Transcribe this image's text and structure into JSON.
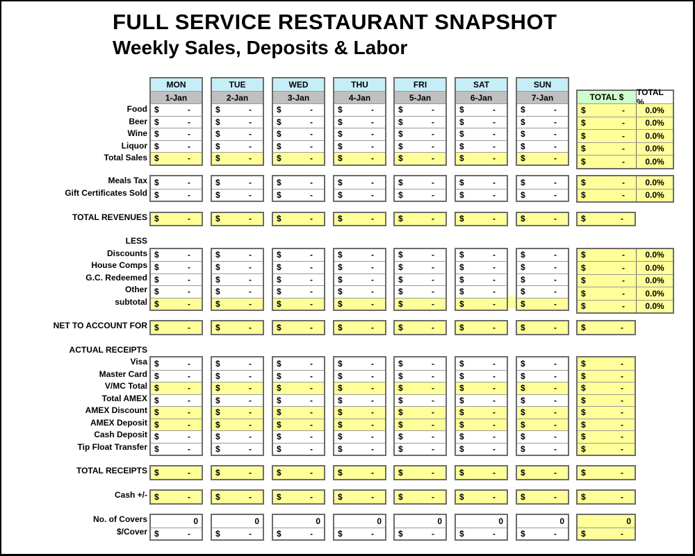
{
  "header": {
    "title": "FULL SERVICE RESTAURANT SNAPSHOT",
    "subtitle": "Weekly Sales, Deposits & Labor"
  },
  "currency_symbol": "$",
  "columns": {
    "days": [
      {
        "label": "MON",
        "date": "1-Jan"
      },
      {
        "label": "TUE",
        "date": "2-Jan"
      },
      {
        "label": "WED",
        "date": "3-Jan"
      },
      {
        "label": "THU",
        "date": "4-Jan"
      },
      {
        "label": "FRI",
        "date": "5-Jan"
      },
      {
        "label": "SAT",
        "date": "6-Jan"
      },
      {
        "label": "SUN",
        "date": "7-Jan"
      }
    ],
    "totals": {
      "dollar": "TOTAL $",
      "percent": "TOTAL %"
    }
  },
  "colors": {
    "day_header": "#C6EEF7",
    "date_header": "#C0C0C0",
    "highlight": "#FFFF99",
    "total_dollar_header": "#CCFFCC"
  },
  "sections": [
    {
      "id": "sales",
      "percent": true,
      "rows": [
        {
          "label": "Food",
          "format": "money",
          "highlight": false,
          "days": [
            "-",
            "-",
            "-",
            "-",
            "-",
            "-",
            "-"
          ],
          "total": "-",
          "pct": "0.0%"
        },
        {
          "label": "Beer",
          "format": "money",
          "highlight": false,
          "days": [
            "-",
            "-",
            "-",
            "-",
            "-",
            "-",
            "-"
          ],
          "total": "-",
          "pct": "0.0%"
        },
        {
          "label": "Wine",
          "format": "money",
          "highlight": false,
          "days": [
            "-",
            "-",
            "-",
            "-",
            "-",
            "-",
            "-"
          ],
          "total": "-",
          "pct": "0.0%"
        },
        {
          "label": "Liquor",
          "format": "money",
          "highlight": false,
          "days": [
            "-",
            "-",
            "-",
            "-",
            "-",
            "-",
            "-"
          ],
          "total": "-",
          "pct": "0.0%"
        },
        {
          "label": "Total Sales",
          "format": "money",
          "highlight": true,
          "days": [
            "-",
            "-",
            "-",
            "-",
            "-",
            "-",
            "-"
          ],
          "total": "-",
          "pct": "0.0%"
        }
      ]
    },
    {
      "id": "taxes",
      "percent": true,
      "rows": [
        {
          "label": "Meals Tax",
          "format": "money",
          "highlight": false,
          "days": [
            "-",
            "-",
            "-",
            "-",
            "-",
            "-",
            "-"
          ],
          "total": "-",
          "pct": "0.0%"
        },
        {
          "label": "Gift Certificates Sold",
          "format": "money",
          "highlight": false,
          "days": [
            "-",
            "-",
            "-",
            "-",
            "-",
            "-",
            "-"
          ],
          "total": "-",
          "pct": "0.0%"
        }
      ]
    },
    {
      "id": "revenues",
      "percent": false,
      "rows": [
        {
          "label": "TOTAL REVENUES",
          "format": "money",
          "highlight": true,
          "days": [
            "-",
            "-",
            "-",
            "-",
            "-",
            "-",
            "-"
          ],
          "total": "-"
        }
      ]
    },
    {
      "id": "less",
      "heading": "LESS",
      "percent": true,
      "rows": [
        {
          "label": "Discounts",
          "format": "money",
          "highlight": false,
          "days": [
            "-",
            "-",
            "-",
            "-",
            "-",
            "-",
            "-"
          ],
          "total": "-",
          "pct": "0.0%"
        },
        {
          "label": "House Comps",
          "format": "money",
          "highlight": false,
          "days": [
            "-",
            "-",
            "-",
            "-",
            "-",
            "-",
            "-"
          ],
          "total": "-",
          "pct": "0.0%"
        },
        {
          "label": "G.C. Redeemed",
          "format": "money",
          "highlight": false,
          "days": [
            "-",
            "-",
            "-",
            "-",
            "-",
            "-",
            "-"
          ],
          "total": "-",
          "pct": "0.0%"
        },
        {
          "label": "Other",
          "format": "money",
          "highlight": false,
          "days": [
            "-",
            "-",
            "-",
            "-",
            "-",
            "-",
            "-"
          ],
          "total": "-",
          "pct": "0.0%"
        },
        {
          "label": "subtotal",
          "format": "money",
          "highlight": true,
          "days": [
            "-",
            "-",
            "-",
            "-",
            "-",
            "-",
            "-"
          ],
          "total": "-",
          "pct": "0.0%"
        }
      ]
    },
    {
      "id": "net",
      "percent": false,
      "rows": [
        {
          "label": "NET TO ACCOUNT FOR",
          "format": "money",
          "highlight": true,
          "days": [
            "-",
            "-",
            "-",
            "-",
            "-",
            "-",
            "-"
          ],
          "total": "-"
        }
      ]
    },
    {
      "id": "receipts",
      "heading": "ACTUAL RECEIPTS",
      "percent": false,
      "rows": [
        {
          "label": "Visa",
          "format": "money",
          "highlight": false,
          "days": [
            "-",
            "-",
            "-",
            "-",
            "-",
            "-",
            "-"
          ],
          "total": "-"
        },
        {
          "label": "Master Card",
          "format": "money",
          "highlight": false,
          "days": [
            "-",
            "-",
            "-",
            "-",
            "-",
            "-",
            "-"
          ],
          "total": "-"
        },
        {
          "label": "V/MC Total",
          "format": "money",
          "highlight": true,
          "days": [
            "-",
            "-",
            "-",
            "-",
            "-",
            "-",
            "-"
          ],
          "total": "-"
        },
        {
          "label": "Total AMEX",
          "format": "money",
          "highlight": false,
          "days": [
            "-",
            "-",
            "-",
            "-",
            "-",
            "-",
            "-"
          ],
          "total": "-"
        },
        {
          "label": "AMEX Discount",
          "format": "money",
          "highlight": true,
          "days": [
            "-",
            "-",
            "-",
            "-",
            "-",
            "-",
            "-"
          ],
          "total": "-"
        },
        {
          "label": "AMEX Deposit",
          "format": "money",
          "highlight": true,
          "days": [
            "-",
            "-",
            "-",
            "-",
            "-",
            "-",
            "-"
          ],
          "total": "-"
        },
        {
          "label": "Cash Deposit",
          "format": "money",
          "highlight": false,
          "days": [
            "-",
            "-",
            "-",
            "-",
            "-",
            "-",
            "-"
          ],
          "total": "-"
        },
        {
          "label": "Tip Float Transfer",
          "format": "money",
          "highlight": false,
          "days": [
            "-",
            "-",
            "-",
            "-",
            "-",
            "-",
            "-"
          ],
          "total": "-"
        }
      ]
    },
    {
      "id": "total_receipts",
      "percent": false,
      "rows": [
        {
          "label": "TOTAL RECEIPTS",
          "format": "money",
          "highlight": true,
          "days": [
            "-",
            "-",
            "-",
            "-",
            "-",
            "-",
            "-"
          ],
          "total": "-"
        }
      ]
    },
    {
      "id": "cash",
      "percent": false,
      "rows": [
        {
          "label": "Cash +/-",
          "format": "money",
          "highlight": true,
          "days": [
            "-",
            "-",
            "-",
            "-",
            "-",
            "-",
            "-"
          ],
          "total": "-"
        }
      ]
    },
    {
      "id": "covers",
      "percent": false,
      "rows": [
        {
          "label": "No. of Covers",
          "format": "count",
          "highlight": false,
          "days": [
            "0",
            "0",
            "0",
            "0",
            "0",
            "0",
            "0"
          ],
          "total": "0"
        },
        {
          "label": "$/Cover",
          "format": "money",
          "highlight": false,
          "days": [
            "-",
            "-",
            "-",
            "-",
            "-",
            "-",
            "-"
          ],
          "total": "-"
        }
      ]
    }
  ]
}
